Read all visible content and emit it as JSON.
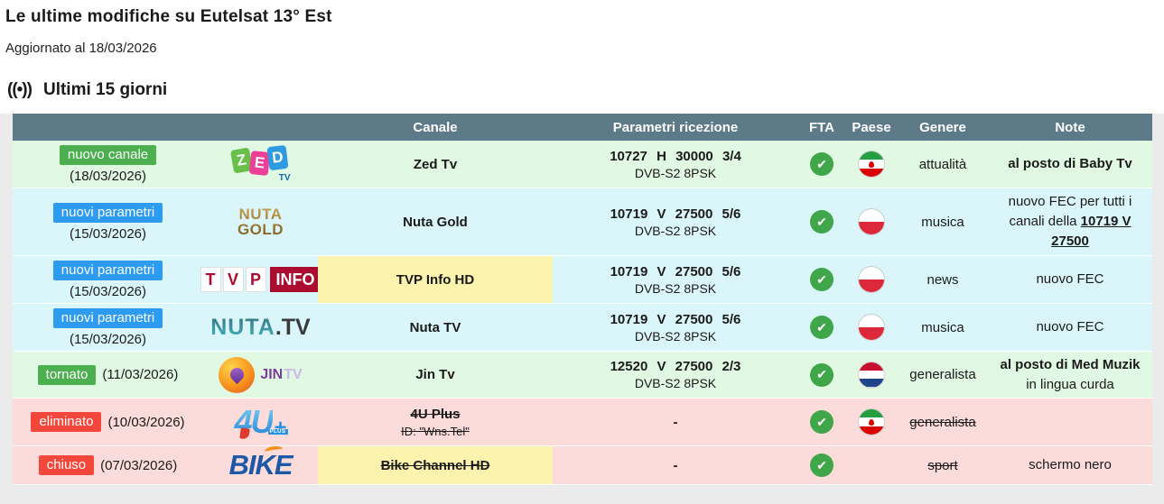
{
  "page": {
    "title": "Le ultime modifiche su Eutelsat 13° Est",
    "updated": "Aggiornato al 18/03/2026",
    "section_icon": "((•))",
    "section_title": "Ultimi 15 giorni"
  },
  "colors": {
    "header_bg": "#5d7a88",
    "badge_green": "#4caf50",
    "badge_blue": "#2d9bf0",
    "badge_red": "#f4473c",
    "row_green": "#e1f8e2",
    "row_cyan": "#daf6fa",
    "row_pink": "#fcdbdb",
    "highlight_yellow": "#fbf3ae",
    "check_green": "#3fa74a"
  },
  "icons": {
    "fta_check": "✔"
  },
  "flags": {
    "iran": {
      "stripes": [
        "#239f40",
        "#ffffff",
        "#da0000"
      ],
      "emblem": true
    },
    "poland": {
      "stripes": [
        "#ffffff",
        "#dc2839"
      ],
      "emblem": false
    },
    "netherlands": {
      "stripes": [
        "#c8102e",
        "#ffffff",
        "#1e448a"
      ],
      "emblem": false
    }
  },
  "logos": {
    "zed": {
      "letters": [
        "Z",
        "E",
        "D"
      ],
      "sub": "TV"
    },
    "nutagold": {
      "line1": "NUTA",
      "line2": "GOLD"
    },
    "tvp": {
      "letters": [
        "T",
        "V",
        "P"
      ],
      "box": "INFO"
    },
    "nutatv": {
      "main": "NUTA",
      "suffix": ".TV"
    },
    "jin": {
      "main": "JIN",
      "sub": "TV"
    },
    "fouru": {
      "main": "4U",
      "plus": "+",
      "label": "PLUS"
    },
    "bike": {
      "text": "BIKE"
    }
  },
  "table": {
    "headers": {
      "canale": "Canale",
      "parametri": "Parametri ricezione",
      "fta": "FTA",
      "paese": "Paese",
      "genere": "Genere",
      "note": "Note"
    },
    "rows": [
      {
        "badge": {
          "label": "nuovo canale",
          "color": "green"
        },
        "date": "(18/03/2026)",
        "date_inline": false,
        "logo": "zed",
        "channel": {
          "name": "Zed Tv",
          "struck": false,
          "highlight": false,
          "sub": null
        },
        "params": {
          "line1": "10727 H 30000 3/4",
          "line2": "DVB-S2 8PSK"
        },
        "fta": true,
        "country": "iran",
        "genre": {
          "label": "attualità",
          "struck": false
        },
        "note": [
          {
            "t": "al posto di Baby Tv",
            "b": true
          }
        ],
        "bg": "green"
      },
      {
        "badge": {
          "label": "nuovi parametri",
          "color": "blue"
        },
        "date": "(15/03/2026)",
        "date_inline": false,
        "logo": "nutagold",
        "channel": {
          "name": "Nuta Gold",
          "struck": false,
          "highlight": false,
          "sub": null
        },
        "params": {
          "line1": "10719 V 27500 5/6",
          "line2": "DVB-S2 8PSK"
        },
        "fta": true,
        "country": "poland",
        "genre": {
          "label": "musica",
          "struck": false
        },
        "note": [
          {
            "t": "nuovo FEC per tutti i canali della "
          },
          {
            "t": "10719 V 27500",
            "b": true,
            "u": true
          }
        ],
        "bg": "cyan"
      },
      {
        "badge": {
          "label": "nuovi parametri",
          "color": "blue"
        },
        "date": "(15/03/2026)",
        "date_inline": false,
        "logo": "tvp",
        "channel": {
          "name": "TVP Info HD",
          "struck": false,
          "highlight": true,
          "sub": null
        },
        "params": {
          "line1": "10719 V 27500 5/6",
          "line2": "DVB-S2 8PSK"
        },
        "fta": true,
        "country": "poland",
        "genre": {
          "label": "news",
          "struck": false
        },
        "note": [
          {
            "t": "nuovo FEC"
          }
        ],
        "bg": "cyan"
      },
      {
        "badge": {
          "label": "nuovi parametri",
          "color": "blue"
        },
        "date": "(15/03/2026)",
        "date_inline": false,
        "logo": "nutatv",
        "channel": {
          "name": "Nuta TV",
          "struck": false,
          "highlight": false,
          "sub": null
        },
        "params": {
          "line1": "10719 V 27500 5/6",
          "line2": "DVB-S2 8PSK"
        },
        "fta": true,
        "country": "poland",
        "genre": {
          "label": "musica",
          "struck": false
        },
        "note": [
          {
            "t": "nuovo FEC"
          }
        ],
        "bg": "cyan"
      },
      {
        "badge": {
          "label": "tornato",
          "color": "green"
        },
        "date": "(11/03/2026)",
        "date_inline": true,
        "logo": "jin",
        "channel": {
          "name": "Jin Tv",
          "struck": false,
          "highlight": false,
          "sub": null
        },
        "params": {
          "line1": "12520 V 27500 2/3",
          "line2": "DVB-S2 8PSK"
        },
        "fta": true,
        "country": "netherlands",
        "genre": {
          "label": "generalista",
          "struck": false
        },
        "note": [
          {
            "t": "al posto di Med Muzik",
            "b": true
          },
          {
            "t": "in lingua curda",
            "br": true
          }
        ],
        "bg": "green"
      },
      {
        "badge": {
          "label": "eliminato",
          "color": "red"
        },
        "date": "(10/03/2026)",
        "date_inline": true,
        "logo": "fouru",
        "channel": {
          "name": "4U Plus",
          "struck": true,
          "highlight": false,
          "sub": "ID: \"Wns.Tel\"",
          "sub_struck": true
        },
        "params": {
          "line1": "-",
          "line2": ""
        },
        "fta": true,
        "country": "iran",
        "genre": {
          "label": "generalista",
          "struck": true
        },
        "note": [],
        "bg": "pink"
      },
      {
        "badge": {
          "label": "chiuso",
          "color": "red"
        },
        "date": "(07/03/2026)",
        "date_inline": true,
        "logo": "bike",
        "channel": {
          "name": "Bike Channel HD",
          "struck": true,
          "highlight": true,
          "sub": null
        },
        "params": {
          "line1": "-",
          "line2": ""
        },
        "fta": true,
        "country": null,
        "genre": {
          "label": "sport",
          "struck": true
        },
        "note": [
          {
            "t": "schermo nero"
          }
        ],
        "bg": "pink"
      }
    ]
  }
}
